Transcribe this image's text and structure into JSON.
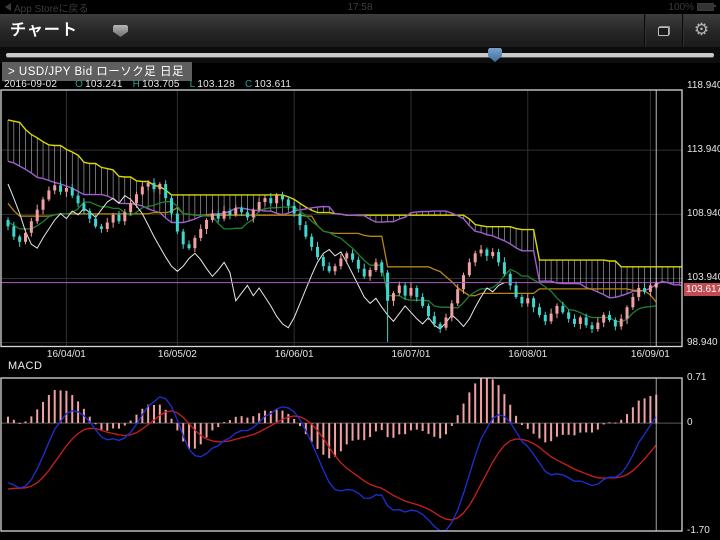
{
  "status_bar": {
    "back_label": "App Storeに戻る",
    "time": "17:58",
    "battery": "100%"
  },
  "nav": {
    "title": "チャート",
    "buttons": [
      {
        "name": "duplicate-window",
        "icon": "overlapping-windows-icon"
      },
      {
        "name": "settings",
        "icon": "gear-icon"
      }
    ]
  },
  "slider": {
    "position_percent": 68
  },
  "instrument": {
    "label": "> USD/JPY  Bid ローソク足 日足"
  },
  "ohlc": {
    "date": "2016-09-02",
    "o_label": "O",
    "o": "103.241",
    "h_label": "H",
    "h": "103.705",
    "l_label": "L",
    "l": "103.128",
    "c_label": "C",
    "c": "103.611"
  },
  "price_badge": "103.617",
  "macd_title": "MACD",
  "colors": {
    "candle_up": "#f0a0a0",
    "candle_down": "#3fd6ce",
    "senkou_a": "#a05fd0",
    "senkou_b": "#d9d900",
    "kijun": "#b8860b",
    "tenkan": "#1e8032",
    "chikou": "#e8e8e8",
    "cloud_hatch": "#dcdcdc",
    "price_line": "#a85fc8",
    "badge_red": "#c24b52",
    "macd_line": "#1f2fd4",
    "signal_line": "#cc1f1f",
    "histogram": "#f2a0a0",
    "grid": "#303030",
    "border": "#d8d8d8",
    "cursor": "#cccccc",
    "ohlc_letter": "#2e9d93",
    "handle_blue": "#4d7fae"
  },
  "chart_data": {
    "type": "candlestick",
    "symbol": "USD/JPY",
    "side": "Bid",
    "timeframe": "日足",
    "title": "USD/JPY Bid ローソク足 日足",
    "last_price": 103.617,
    "selected_bar": {
      "date": "2016-09-02",
      "o": 103.241,
      "h": 103.705,
      "l": 103.128,
      "c": 103.611
    },
    "y_axis_labels": [
      118.94,
      113.94,
      108.94,
      103.94,
      98.94
    ],
    "x_gridlines": [
      {
        "bar": 10,
        "label": "16/04/01"
      },
      {
        "bar": 29,
        "label": "16/05/02"
      },
      {
        "bar": 49,
        "label": "16/06/01"
      },
      {
        "bar": 69,
        "label": "16/07/01"
      },
      {
        "bar": 89,
        "label": "16/08/01"
      },
      {
        "bar": 110,
        "label": "16/09/01"
      }
    ],
    "indicators": {
      "ichimoku": {
        "tenkan": 9,
        "kijun": 26,
        "senkou_b": 52,
        "displacement": 26
      },
      "macd": {
        "fast": 12,
        "slow": 26,
        "signal": 9
      }
    },
    "macd_axis": [
      {
        "value": 0.71,
        "label": "0.71"
      },
      {
        "value": 0,
        "label": "0"
      },
      {
        "value": -1.7,
        "label": "-1.70"
      }
    ],
    "candles": [
      [
        108.5,
        108.7,
        107.7,
        108.0
      ],
      [
        108.0,
        108.35,
        106.95,
        107.2
      ],
      [
        107.2,
        107.35,
        106.4,
        106.8
      ],
      [
        106.8,
        107.8,
        106.6,
        107.5
      ],
      [
        107.5,
        108.65,
        107.2,
        108.4
      ],
      [
        108.4,
        109.7,
        108.2,
        109.3
      ],
      [
        109.3,
        110.3,
        108.95,
        110.1
      ],
      [
        110.1,
        111.1,
        109.95,
        110.8
      ],
      [
        110.8,
        111.4,
        110.5,
        111.2
      ],
      [
        111.2,
        111.55,
        110.45,
        110.7
      ],
      [
        110.7,
        111.15,
        110.3,
        111.0
      ],
      [
        111.0,
        111.3,
        110.2,
        110.4
      ],
      [
        110.4,
        110.65,
        109.5,
        109.8
      ],
      [
        109.8,
        110.2,
        109.0,
        109.2
      ],
      [
        109.2,
        109.4,
        108.25,
        108.6
      ],
      [
        108.6,
        108.9,
        107.85,
        108.0
      ],
      [
        108.0,
        108.2,
        107.5,
        107.8
      ],
      [
        107.8,
        108.65,
        107.55,
        108.3
      ],
      [
        108.3,
        109.05,
        107.9,
        108.9
      ],
      [
        108.9,
        109.2,
        108.2,
        108.4
      ],
      [
        108.4,
        109.35,
        108.1,
        109.1
      ],
      [
        109.1,
        110.2,
        108.9,
        109.8
      ],
      [
        109.8,
        110.7,
        109.45,
        110.5
      ],
      [
        110.5,
        111.4,
        110.35,
        111.1
      ],
      [
        111.1,
        111.6,
        110.8,
        111.4
      ],
      [
        111.4,
        111.75,
        110.65,
        110.9
      ],
      [
        110.9,
        111.45,
        110.5,
        111.3
      ],
      [
        111.3,
        111.6,
        110.0,
        110.2
      ],
      [
        110.2,
        110.45,
        108.7,
        109.0
      ],
      [
        109.0,
        109.4,
        107.4,
        107.6
      ],
      [
        107.6,
        107.8,
        106.25,
        106.6
      ],
      [
        106.6,
        106.9,
        106.15,
        106.3
      ],
      [
        106.3,
        107.3,
        106.0,
        107.1
      ],
      [
        107.1,
        108.15,
        106.85,
        107.8
      ],
      [
        107.8,
        108.65,
        107.4,
        108.5
      ],
      [
        108.5,
        109.3,
        108.3,
        109.0
      ],
      [
        109.0,
        109.25,
        108.3,
        108.6
      ],
      [
        108.6,
        109.6,
        108.4,
        109.2
      ],
      [
        109.2,
        109.4,
        108.55,
        108.9
      ],
      [
        108.9,
        109.7,
        108.75,
        109.4
      ],
      [
        109.4,
        109.6,
        108.8,
        109.1
      ],
      [
        109.1,
        109.45,
        108.45,
        108.7
      ],
      [
        108.7,
        109.45,
        108.3,
        109.3
      ],
      [
        109.3,
        110.2,
        109.1,
        109.9
      ],
      [
        109.9,
        110.45,
        109.6,
        110.2
      ],
      [
        110.2,
        110.6,
        109.6,
        109.8
      ],
      [
        109.8,
        110.6,
        109.45,
        110.4
      ],
      [
        110.4,
        110.7,
        109.95,
        110.1
      ],
      [
        110.1,
        110.3,
        109.3,
        109.6
      ],
      [
        109.6,
        109.95,
        108.75,
        109.0
      ],
      [
        109.0,
        109.15,
        107.7,
        108.1
      ],
      [
        108.1,
        108.4,
        107.0,
        107.2
      ],
      [
        107.2,
        107.45,
        106.1,
        106.4
      ],
      [
        106.4,
        106.8,
        105.4,
        105.6
      ],
      [
        105.6,
        105.8,
        104.55,
        104.9
      ],
      [
        104.9,
        105.2,
        104.35,
        104.5
      ],
      [
        104.5,
        105.1,
        104.2,
        104.9
      ],
      [
        104.9,
        105.85,
        104.65,
        105.5
      ],
      [
        105.5,
        106.05,
        105.1,
        105.9
      ],
      [
        105.9,
        106.2,
        105.2,
        105.4
      ],
      [
        105.4,
        105.65,
        104.4,
        104.7
      ],
      [
        104.7,
        105.1,
        103.9,
        104.1
      ],
      [
        104.1,
        104.8,
        103.75,
        104.6
      ],
      [
        104.6,
        105.5,
        104.45,
        105.2
      ],
      [
        105.2,
        105.4,
        104.1,
        104.4
      ],
      [
        104.4,
        104.6,
        99.0,
        102.2
      ],
      [
        102.2,
        102.95,
        101.8,
        102.8
      ],
      [
        102.8,
        103.7,
        102.6,
        103.4
      ],
      [
        103.4,
        103.65,
        102.3,
        102.6
      ],
      [
        102.6,
        103.6,
        102.4,
        103.2
      ],
      [
        103.2,
        103.4,
        102.15,
        102.5
      ],
      [
        102.5,
        102.8,
        101.65,
        101.8
      ],
      [
        101.8,
        102.0,
        100.7,
        101.0
      ],
      [
        101.0,
        101.35,
        100.15,
        100.4
      ],
      [
        100.4,
        100.55,
        99.7,
        100.1
      ],
      [
        100.1,
        101.2,
        99.9,
        100.9
      ],
      [
        100.9,
        102.25,
        100.6,
        102.0
      ],
      [
        102.0,
        103.5,
        101.8,
        103.1
      ],
      [
        103.1,
        104.4,
        102.75,
        104.2
      ],
      [
        104.2,
        105.5,
        104.05,
        105.2
      ],
      [
        105.2,
        106.1,
        104.9,
        105.9
      ],
      [
        105.9,
        106.55,
        105.65,
        106.2
      ],
      [
        106.2,
        106.35,
        105.3,
        105.7
      ],
      [
        105.7,
        106.3,
        105.5,
        106.0
      ],
      [
        106.0,
        106.25,
        104.9,
        105.2
      ],
      [
        105.2,
        105.6,
        104.1,
        104.3
      ],
      [
        104.3,
        104.5,
        103.05,
        103.4
      ],
      [
        103.4,
        103.7,
        102.35,
        102.5
      ],
      [
        102.5,
        102.7,
        101.7,
        102.0
      ],
      [
        102.0,
        102.75,
        101.75,
        102.4
      ],
      [
        102.4,
        102.55,
        101.3,
        101.7
      ],
      [
        101.7,
        102.0,
        100.9,
        101.1
      ],
      [
        101.1,
        101.35,
        100.3,
        100.6
      ],
      [
        100.6,
        101.6,
        100.4,
        101.2
      ],
      [
        101.2,
        102.0,
        100.85,
        101.8
      ],
      [
        101.8,
        102.1,
        101.15,
        101.3
      ],
      [
        101.3,
        101.5,
        100.5,
        100.8
      ],
      [
        100.8,
        101.15,
        100.15,
        100.4
      ],
      [
        100.4,
        101.05,
        100.0,
        100.9
      ],
      [
        100.9,
        101.2,
        100.1,
        100.3
      ],
      [
        100.3,
        100.55,
        99.7,
        100.0
      ],
      [
        100.0,
        100.9,
        99.8,
        100.5
      ],
      [
        100.5,
        101.3,
        100.15,
        101.1
      ],
      [
        101.1,
        101.4,
        100.55,
        100.7
      ],
      [
        100.7,
        100.9,
        99.9,
        100.2
      ],
      [
        100.2,
        101.15,
        99.95,
        100.8
      ],
      [
        100.8,
        101.85,
        100.4,
        101.7
      ],
      [
        101.7,
        102.8,
        101.5,
        102.5
      ],
      [
        102.5,
        103.45,
        102.2,
        103.2
      ],
      [
        103.2,
        103.6,
        102.7,
        102.9
      ],
      [
        102.9,
        103.6,
        102.55,
        103.4
      ],
      [
        103.241,
        103.705,
        103.128,
        103.611
      ]
    ],
    "prehistory_closes": [
      121.5,
      121.2,
      120.8,
      121.0,
      120.4,
      119.9,
      120.2,
      119.6,
      119.1,
      118.7,
      119.0,
      118.4,
      117.9,
      118.2,
      117.6,
      117.1,
      117.4,
      116.8,
      116.3,
      116.6,
      116.0,
      115.6,
      115.9,
      115.3,
      114.9,
      115.2,
      114.6,
      114.1,
      114.4,
      113.8,
      113.4,
      113.7,
      113.1,
      112.7,
      113.0,
      112.4,
      112.0,
      112.3,
      111.7,
      111.4,
      111.8,
      112.3,
      112.9,
      113.4,
      113.1,
      113.6,
      114.0,
      113.7,
      114.2,
      113.9,
      113.5,
      112.9,
      112.3,
      111.8,
      111.2,
      110.7,
      110.1,
      109.6,
      109.9,
      110.4,
      110.9,
      110.5,
      110.0,
      109.4,
      108.9,
      108.4,
      108.8,
      109.3,
      109.0,
      108.6,
      108.2,
      107.8,
      108.1,
      108.5,
      108.9,
      108.4,
      108.0,
      108.3
    ]
  }
}
